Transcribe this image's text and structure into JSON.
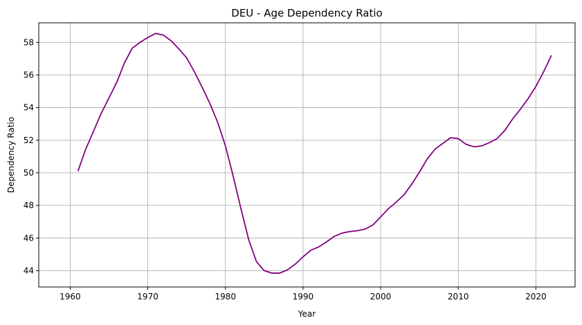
{
  "chart_data": {
    "type": "line",
    "title": "DEU - Age Dependency Ratio",
    "xlabel": "Year",
    "ylabel": "Dependency Ratio",
    "xlim": [
      1955.95,
      2025.05
    ],
    "ylim": [
      43.0,
      59.2
    ],
    "xticks": [
      1960,
      1970,
      1980,
      1990,
      2000,
      2010,
      2020
    ],
    "yticks": [
      44,
      46,
      48,
      50,
      52,
      54,
      56,
      58
    ],
    "grid": true,
    "series_color": "#800080",
    "series": [
      {
        "x": [
          1961,
          1962,
          1963,
          1964,
          1965,
          1966,
          1967,
          1968,
          1969,
          1970,
          1971,
          1972,
          1973,
          1974,
          1975,
          1976,
          1977,
          1978,
          1979,
          1980,
          1981,
          1982,
          1983,
          1984,
          1985,
          1986,
          1987,
          1988,
          1989,
          1990,
          1991,
          1992,
          1993,
          1994,
          1995,
          1996,
          1997,
          1998,
          1999,
          2000,
          2001,
          2002,
          2003,
          2004,
          2005,
          2006,
          2007,
          2008,
          2009,
          2010,
          2011,
          2012,
          2013,
          2014,
          2015,
          2016,
          2017,
          2018,
          2019,
          2020,
          2021,
          2022
        ],
        "values": [
          50.1,
          51.45,
          52.55,
          53.65,
          54.6,
          55.55,
          56.75,
          57.65,
          58.0,
          58.3,
          58.55,
          58.45,
          58.1,
          57.6,
          57.05,
          56.2,
          55.25,
          54.25,
          53.1,
          51.65,
          49.8,
          47.8,
          45.9,
          44.55,
          44.0,
          43.85,
          43.85,
          44.05,
          44.4,
          44.85,
          45.25,
          45.45,
          45.75,
          46.1,
          46.3,
          46.4,
          46.45,
          46.55,
          46.8,
          47.3,
          47.8,
          48.2,
          48.65,
          49.3,
          50.05,
          50.85,
          51.45,
          51.8,
          52.15,
          52.1,
          51.75,
          51.6,
          51.65,
          51.85,
          52.1,
          52.6,
          53.3,
          53.9,
          54.55,
          55.3,
          56.2,
          57.2
        ]
      }
    ]
  }
}
